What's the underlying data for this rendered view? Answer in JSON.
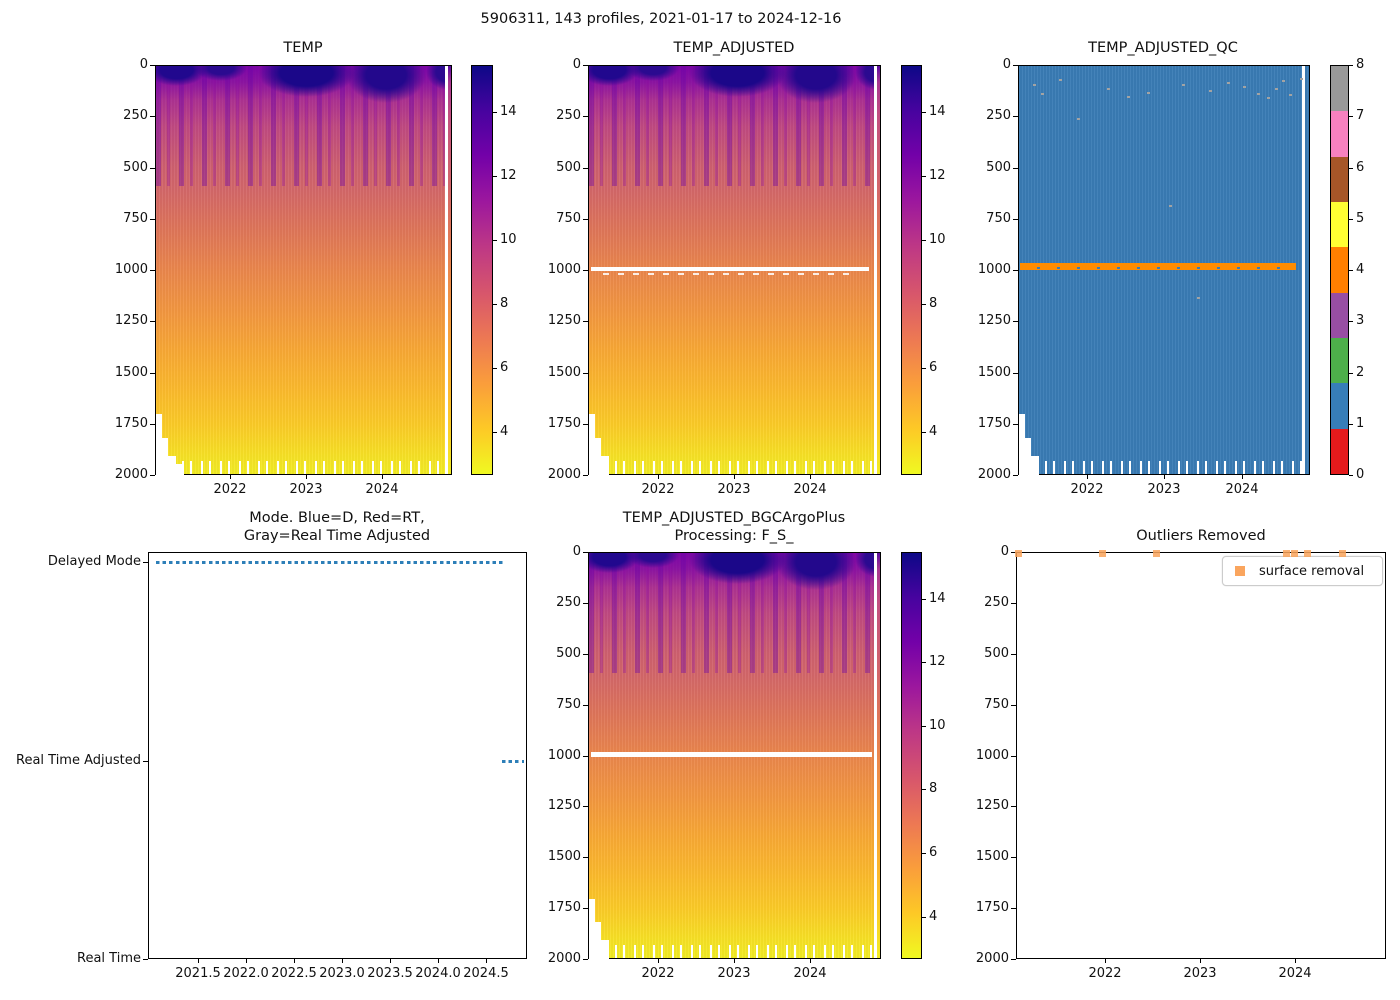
{
  "figure_title": "5906311, 143 profiles, 2021-01-17 to 2024-12-16",
  "depth_ticks": [
    "0",
    "250",
    "500",
    "750",
    "1000",
    "1250",
    "1500",
    "1750",
    "2000"
  ],
  "panels": {
    "temp": {
      "title": "TEMP",
      "x_ticks": [
        "2022",
        "2023",
        "2024"
      ],
      "colorbar_ticks": [
        "14",
        "12",
        "10",
        "8",
        "6",
        "4"
      ]
    },
    "temp_adjusted": {
      "title": "TEMP_ADJUSTED",
      "x_ticks": [
        "2022",
        "2023",
        "2024"
      ],
      "colorbar_ticks": [
        "14",
        "12",
        "10",
        "8",
        "6",
        "4"
      ]
    },
    "temp_adjusted_qc": {
      "title": "TEMP_ADJUSTED_QC",
      "x_ticks": [
        "2022",
        "2023",
        "2024"
      ],
      "colorbar_ticks": [
        "8",
        "7",
        "6",
        "5",
        "4",
        "3",
        "2",
        "1",
        "0"
      ]
    },
    "mode": {
      "title_line1": "Mode. Blue=D, Red=RT,",
      "title_line2": "Gray=Real Time Adjusted",
      "y_categories": [
        "Delayed Mode",
        "Real Time Adjusted",
        "Real Time"
      ],
      "x_ticks": [
        "2021.5",
        "2022.0",
        "2022.5",
        "2023.0",
        "2023.5",
        "2024.0",
        "2024.5"
      ]
    },
    "bgc": {
      "title_line1": "TEMP_ADJUSTED_BGCArgoPlus",
      "title_line2": "Processing: F_S_",
      "x_ticks": [
        "2022",
        "2023",
        "2024"
      ],
      "colorbar_ticks": [
        "14",
        "12",
        "10",
        "8",
        "6",
        "4"
      ]
    },
    "outliers": {
      "title": "Outliers Removed",
      "legend_label": "surface removal",
      "x_ticks": [
        "2022",
        "2023",
        "2024"
      ]
    }
  },
  "colors": {
    "qc_scale_0_to_8": [
      "#e41a1c",
      "#377eb8",
      "#4daf4a",
      "#984ea3",
      "#ff7f00",
      "#ffff33",
      "#a65628",
      "#f781bf",
      "#999999"
    ],
    "qc_background": "#3a7cb5",
    "qc_flag4_band": "#ff8c00",
    "mode_marker": "#1f77b4",
    "outlier_marker": "#f9a35b",
    "masked_data": "#ffffff"
  },
  "chart_data": [
    {
      "type": "heatmap",
      "title": "TEMP",
      "x_range_years": [
        2021.04,
        2024.96
      ],
      "x_ticks": [
        2022,
        2023,
        2024
      ],
      "y_depth_range_m": [
        0,
        2000
      ],
      "y_ticks": [
        0,
        250,
        500,
        750,
        1000,
        1250,
        1500,
        1750,
        2000
      ],
      "value_range_degC": [
        2.7,
        15.5
      ],
      "colorbar_ticks": [
        14,
        12,
        10,
        8,
        6,
        4
      ],
      "colormap": "plasma_r",
      "profiles": 143,
      "description": "Temperature vs depth vs time. Warm (~14-15 degC, dark navy) surface pockets each summer over ~10-12 degC surface band, cooling monotonically to ~3 degC (yellow) at 2000 m. Earliest 2021 profiles stop shallower than 2000 m (white staircase lower-left); white comb of missing deepest bins along bottom; one missing profile column near right edge."
    },
    {
      "type": "heatmap",
      "title": "TEMP_ADJUSTED",
      "x_range_years": [
        2021.04,
        2024.96
      ],
      "x_ticks": [
        2022,
        2023,
        2024
      ],
      "y_depth_range_m": [
        0,
        2000
      ],
      "value_range_degC": [
        2.7,
        15.5
      ],
      "colorbar_ticks": [
        14,
        12,
        10,
        8,
        6,
        4
      ],
      "colormap": "plasma_r",
      "description": "Same field as TEMP but with adjusted values masked (white horizontal line) at ~985-1010 m across all profiles."
    },
    {
      "type": "heatmap",
      "title": "TEMP_ADJUSTED_QC",
      "x_range_years": [
        2021.04,
        2024.96
      ],
      "x_ticks": [
        2022,
        2023,
        2024
      ],
      "y_depth_range_m": [
        0,
        2000
      ],
      "value_range": [
        0,
        8
      ],
      "colorbar_ticks": [
        8,
        7,
        6,
        5,
        4,
        3,
        2,
        1,
        0
      ],
      "colormap": "discrete Set1: 0 red,1 blue,2 green,3 purple,4 orange,5 yellow,6 brown,7 pink,8 gray",
      "dominant_flag": 1,
      "flag4_band_depth_m": [
        960,
        1010
      ],
      "flag8_points": "scattered isolated points near surface (~50-250 m) and one near 680 m",
      "description": "QC flags: nearly all 1 (good, blue); orange band of flag 4 near 1000 m; gray flag-8 speckles near surface."
    },
    {
      "type": "scatter",
      "title": "Mode. Blue=D, Red=RT, Gray=Real Time Adjusted",
      "y_categories": [
        "Delayed Mode",
        "Real Time Adjusted",
        "Real Time"
      ],
      "x_ticks": [
        2021.5,
        2022.0,
        2022.5,
        2023.0,
        2023.5,
        2024.0,
        2024.5
      ],
      "series": [
        {
          "name": "Delayed Mode",
          "marker": "blue squares",
          "x_span_years": [
            2021.06,
            2024.69
          ]
        },
        {
          "name": "Real Time Adjusted",
          "marker": "blue squares",
          "x_span_years": [
            2024.7,
            2024.92
          ]
        },
        {
          "name": "Real Time",
          "marker": null,
          "x_span_years": null
        }
      ]
    },
    {
      "type": "heatmap",
      "title": "TEMP_ADJUSTED_BGCArgoPlus Processing: F_S_",
      "x_range_years": [
        2021.04,
        2024.96
      ],
      "x_ticks": [
        2022,
        2023,
        2024
      ],
      "y_depth_range_m": [
        0,
        2000
      ],
      "value_range_degC": [
        2.7,
        15.5
      ],
      "colorbar_ticks": [
        14,
        12,
        10,
        8,
        6,
        4
      ],
      "colormap": "plasma_r",
      "description": "Post-processed adjusted temperature; thick white masked line at ~985-1010 m."
    },
    {
      "type": "scatter",
      "title": "Outliers Removed",
      "legend": [
        "surface removal"
      ],
      "x_ticks": [
        2022,
        2023,
        2024
      ],
      "y_depth_range_m": [
        0,
        2000
      ],
      "points": [
        {
          "x_year": 2021.08,
          "depth_m": 0
        },
        {
          "x_year": 2021.97,
          "depth_m": 0
        },
        {
          "x_year": 2022.54,
          "depth_m": 0
        },
        {
          "x_year": 2023.9,
          "depth_m": 0
        },
        {
          "x_year": 2023.99,
          "depth_m": 0
        },
        {
          "x_year": 2024.13,
          "depth_m": 0
        },
        {
          "x_year": 2024.49,
          "depth_m": 0
        }
      ]
    }
  ],
  "qc_flag8_points_rel": [
    [
      14,
      18
    ],
    [
      22,
      27
    ],
    [
      40,
      13
    ],
    [
      58,
      52
    ],
    [
      88,
      22
    ],
    [
      108,
      30
    ],
    [
      128,
      26
    ],
    [
      150,
      139
    ],
    [
      163,
      18
    ],
    [
      178,
      231
    ],
    [
      190,
      24
    ],
    [
      208,
      16
    ],
    [
      224,
      20
    ],
    [
      238,
      27
    ],
    [
      248,
      31
    ],
    [
      256,
      22
    ],
    [
      263,
      14
    ],
    [
      270,
      28
    ],
    [
      281,
      12
    ]
  ]
}
